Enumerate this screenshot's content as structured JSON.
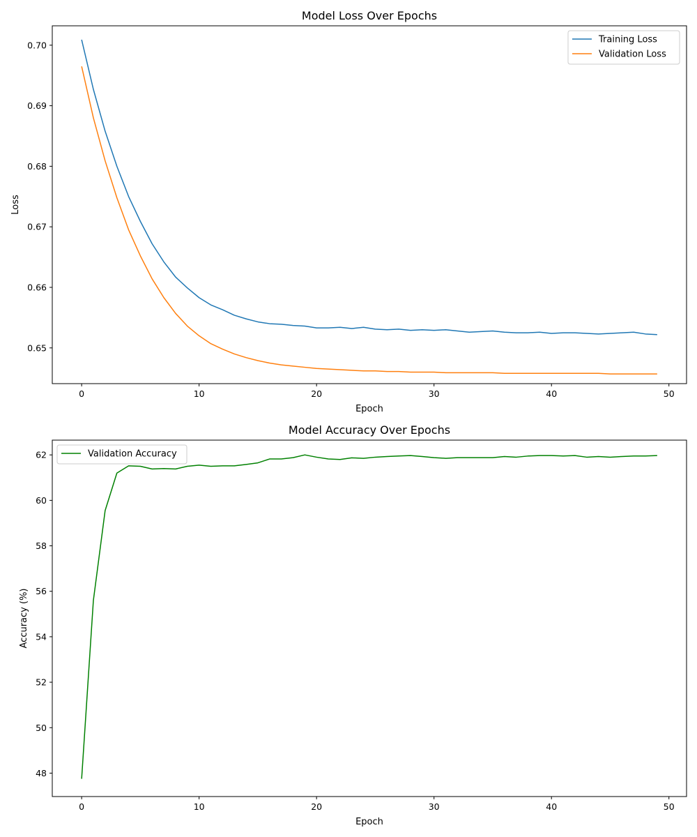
{
  "chart_data": [
    {
      "type": "line",
      "title": "Model Loss Over Epochs",
      "xlabel": "Epoch",
      "ylabel": "Loss",
      "xlim": [
        -2.5,
        51.5
      ],
      "ylim": [
        0.6441,
        0.7032
      ],
      "xticks": [
        0,
        10,
        20,
        30,
        40,
        50
      ],
      "yticks": [
        0.65,
        0.66,
        0.67,
        0.68,
        0.69,
        0.7
      ],
      "ytick_labels": [
        "0.65",
        "0.66",
        "0.67",
        "0.68",
        "0.69",
        "0.70"
      ],
      "grid": false,
      "legend_position": "upper right",
      "series": [
        {
          "name": "Training Loss",
          "color": "#1f77b4",
          "x": [
            0,
            1,
            2,
            3,
            4,
            5,
            6,
            7,
            8,
            9,
            10,
            11,
            12,
            13,
            14,
            15,
            16,
            17,
            18,
            19,
            20,
            21,
            22,
            23,
            24,
            25,
            26,
            27,
            28,
            29,
            30,
            31,
            32,
            33,
            34,
            35,
            36,
            37,
            38,
            39,
            40,
            41,
            42,
            43,
            44,
            45,
            46,
            47,
            48,
            49
          ],
          "values": [
            0.7009,
            0.6927,
            0.6858,
            0.68,
            0.675,
            0.6709,
            0.6672,
            0.6642,
            0.6617,
            0.6599,
            0.6583,
            0.6571,
            0.6563,
            0.6554,
            0.6548,
            0.6543,
            0.654,
            0.6539,
            0.6537,
            0.6536,
            0.6533,
            0.6533,
            0.6534,
            0.6532,
            0.6534,
            0.6531,
            0.653,
            0.6531,
            0.6529,
            0.653,
            0.6529,
            0.653,
            0.6528,
            0.6526,
            0.6527,
            0.6528,
            0.6526,
            0.6525,
            0.6525,
            0.6526,
            0.6524,
            0.6525,
            0.6525,
            0.6524,
            0.6523,
            0.6524,
            0.6525,
            0.6526,
            0.6523,
            0.6522
          ]
        },
        {
          "name": "Validation Loss",
          "color": "#ff7f0e",
          "x": [
            0,
            1,
            2,
            3,
            4,
            5,
            6,
            7,
            8,
            9,
            10,
            11,
            12,
            13,
            14,
            15,
            16,
            17,
            18,
            19,
            20,
            21,
            22,
            23,
            24,
            25,
            26,
            27,
            28,
            29,
            30,
            31,
            32,
            33,
            34,
            35,
            36,
            37,
            38,
            39,
            40,
            41,
            42,
            43,
            44,
            45,
            46,
            47,
            48,
            49
          ],
          "values": [
            0.6965,
            0.688,
            0.6809,
            0.6748,
            0.6695,
            0.6652,
            0.6614,
            0.6583,
            0.6557,
            0.6536,
            0.652,
            0.6507,
            0.6498,
            0.649,
            0.6484,
            0.6479,
            0.6475,
            0.6472,
            0.647,
            0.6468,
            0.6466,
            0.6465,
            0.6464,
            0.6463,
            0.6462,
            0.6462,
            0.6461,
            0.6461,
            0.646,
            0.646,
            0.646,
            0.6459,
            0.6459,
            0.6459,
            0.6459,
            0.6459,
            0.6458,
            0.6458,
            0.6458,
            0.6458,
            0.6458,
            0.6458,
            0.6458,
            0.6458,
            0.6458,
            0.6457,
            0.6457,
            0.6457,
            0.6457,
            0.6457
          ]
        }
      ]
    },
    {
      "type": "line",
      "title": "Model Accuracy Over Epochs",
      "xlabel": "Epoch",
      "ylabel": "Accuracy (%)",
      "xlim": [
        -2.5,
        51.5
      ],
      "ylim": [
        46.97,
        62.65
      ],
      "xticks": [
        0,
        10,
        20,
        30,
        40,
        50
      ],
      "yticks": [
        48,
        50,
        52,
        54,
        56,
        58,
        60,
        62
      ],
      "ytick_labels": [
        "48",
        "50",
        "52",
        "54",
        "56",
        "58",
        "60",
        "62"
      ],
      "grid": false,
      "legend_position": "upper left",
      "series": [
        {
          "name": "Validation Accuracy",
          "color": "#008000",
          "x": [
            0,
            1,
            2,
            3,
            4,
            5,
            6,
            7,
            8,
            9,
            10,
            11,
            12,
            13,
            14,
            15,
            16,
            17,
            18,
            19,
            20,
            21,
            22,
            23,
            24,
            25,
            26,
            27,
            28,
            29,
            30,
            31,
            32,
            33,
            34,
            35,
            36,
            37,
            38,
            39,
            40,
            41,
            42,
            43,
            44,
            45,
            46,
            47,
            48,
            49
          ],
          "values": [
            47.75,
            55.6,
            59.55,
            61.2,
            61.52,
            61.5,
            61.38,
            61.4,
            61.38,
            61.5,
            61.55,
            61.5,
            61.52,
            61.52,
            61.58,
            61.65,
            61.82,
            61.82,
            61.88,
            62.0,
            61.9,
            61.82,
            61.8,
            61.87,
            61.85,
            61.9,
            61.93,
            61.95,
            61.97,
            61.93,
            61.88,
            61.85,
            61.88,
            61.88,
            61.88,
            61.88,
            61.93,
            61.9,
            61.95,
            61.97,
            61.97,
            61.95,
            61.97,
            61.9,
            61.93,
            61.9,
            61.93,
            61.95,
            61.95,
            61.97
          ]
        }
      ]
    }
  ]
}
